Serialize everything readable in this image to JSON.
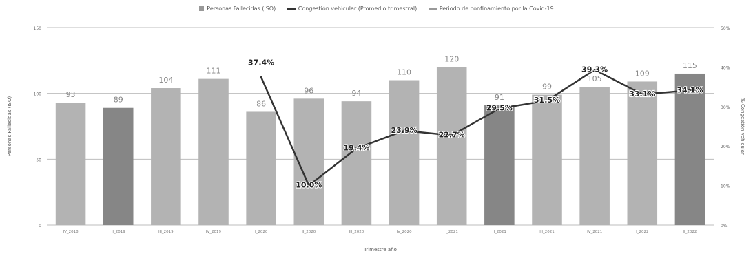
{
  "legend": {
    "bars_label": "Personas Fallecidas (ISO)",
    "line_label": "Congestión vehicular (Promedio trimestral)",
    "covid_label": "Periodo de confinamiento por la Covid-19"
  },
  "colors": {
    "bar_light": "#b3b3b3",
    "bar_dark": "#868686",
    "line": "#333333",
    "covid_line": "#999999",
    "grid": "#bdbdbd"
  },
  "chart_data": {
    "type": "bar",
    "categories": [
      "IV_2018",
      "II_2019",
      "III_2019",
      "IV_2019",
      "I_2020",
      "II_2020",
      "III_2020",
      "IV_2020",
      "I_2021",
      "II_2021",
      "III_2021",
      "IV_2021",
      "I_2022",
      "II_2022"
    ],
    "bar_shades": [
      "light",
      "dark",
      "light",
      "light",
      "light",
      "light",
      "light",
      "light",
      "light",
      "dark",
      "light",
      "light",
      "light",
      "dark"
    ],
    "series": [
      {
        "name": "Personas Fallecidas (ISO)",
        "type": "bar",
        "axis": "left",
        "values": [
          93,
          89,
          104,
          111,
          86,
          96,
          94,
          110,
          120,
          91,
          99,
          105,
          109,
          115
        ]
      },
      {
        "name": "Congestión vehicular (Promedio trimestral)",
        "type": "line",
        "axis": "right",
        "values": [
          null,
          null,
          null,
          null,
          37.4,
          10.0,
          19.4,
          23.9,
          22.7,
          29.5,
          31.5,
          39.3,
          33.1,
          34.1
        ],
        "labels": [
          null,
          null,
          null,
          null,
          "37.4%",
          "10.0%",
          "19.4%",
          "23.9%",
          "22.7%",
          "29.5%",
          "31.5%",
          "39.3%",
          "33.1%",
          "34.1%"
        ]
      }
    ],
    "ylabel": "Personas Fallecidas (ISO)",
    "y2label": "% Congestión vehicular",
    "xlabel": "Trimestre año",
    "ylim": [
      0,
      150
    ],
    "y2lim": [
      0,
      50
    ],
    "yticks": [
      "0",
      "50",
      "100",
      "150"
    ],
    "y2ticks": [
      "0%",
      "10%",
      "20%",
      "30%",
      "40%",
      "50%"
    ],
    "grid": true,
    "legend_position": "top"
  }
}
